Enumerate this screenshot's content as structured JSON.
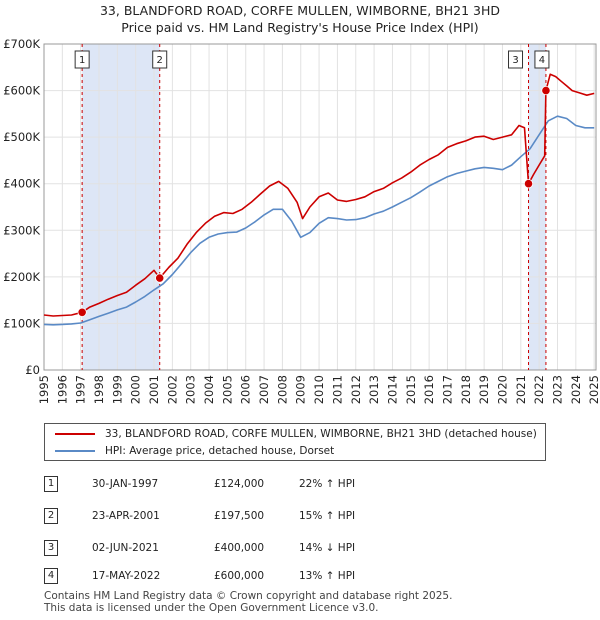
{
  "title_line1": "33, BLANDFORD ROAD, CORFE MULLEN, WIMBORNE, BH21 3HD",
  "title_line2": "Price paid vs. HM Land Registry's House Price Index (HPI)",
  "colors": {
    "property": "#cc0000",
    "hpi": "#5a8ac6",
    "shade": "#dde6f6",
    "grid": "#e2e2e2"
  },
  "chart_data": {
    "type": "line",
    "title": "33, BLANDFORD ROAD, CORFE MULLEN, WIMBORNE, BH21 3HD — Price paid vs. HM Land Registry's House Price Index (HPI)",
    "xlim": [
      1995,
      2025.1
    ],
    "ylim": [
      0,
      700000
    ],
    "y_ticks": [
      0,
      100000,
      200000,
      300000,
      400000,
      500000,
      600000,
      700000
    ],
    "y_tick_labels": [
      "£0",
      "£100K",
      "£200K",
      "£300K",
      "£400K",
      "£500K",
      "£600K",
      "£700K"
    ],
    "x_ticks": [
      "1995",
      "1996",
      "1997",
      "1998",
      "1999",
      "2000",
      "2001",
      "2002",
      "2003",
      "2004",
      "2005",
      "2006",
      "2007",
      "2008",
      "2009",
      "2010",
      "2011",
      "2012",
      "2013",
      "2014",
      "2015",
      "2016",
      "2017",
      "2018",
      "2019",
      "2020",
      "2021",
      "2022",
      "2023",
      "2024",
      "2025"
    ],
    "shaded_ranges": [
      [
        1997.08,
        2001.31
      ],
      [
        2021.42,
        2022.37
      ]
    ],
    "series": [
      {
        "name": "33, BLANDFORD ROAD, CORFE MULLEN, WIMBORNE, BH21 3HD (detached house)",
        "x": [
          1995,
          1995.5,
          1996,
          1996.5,
          1997.08,
          1997.5,
          1998,
          1998.5,
          1999,
          1999.5,
          2000,
          2000.5,
          2001,
          2001.31,
          2001.8,
          2002.3,
          2002.8,
          2003.3,
          2003.8,
          2004.3,
          2004.8,
          2005.3,
          2005.8,
          2006.3,
          2006.8,
          2007.3,
          2007.8,
          2008.3,
          2008.8,
          2009.1,
          2009.5,
          2010,
          2010.5,
          2011,
          2011.5,
          2012,
          2012.5,
          2013,
          2013.5,
          2014,
          2014.5,
          2015,
          2015.5,
          2016,
          2016.5,
          2017,
          2017.5,
          2018,
          2018.5,
          2019,
          2019.5,
          2020,
          2020.5,
          2020.9,
          2021.2,
          2021.42,
          2021.7,
          2022.0,
          2022.3,
          2022.37,
          2022.6,
          2022.9,
          2023.2,
          2023.5,
          2023.8,
          2024.2,
          2024.6,
          2025.0
        ],
        "values": [
          118000,
          116000,
          117000,
          118000,
          124000,
          135000,
          143000,
          152000,
          160000,
          167000,
          182000,
          196000,
          214000,
          197500,
          220000,
          240000,
          270000,
          295000,
          315000,
          330000,
          338000,
          336000,
          345000,
          360000,
          378000,
          395000,
          405000,
          390000,
          360000,
          325000,
          350000,
          372000,
          380000,
          365000,
          362000,
          366000,
          372000,
          383000,
          390000,
          402000,
          412000,
          425000,
          440000,
          452000,
          462000,
          478000,
          486000,
          492000,
          500000,
          502000,
          495000,
          500000,
          505000,
          525000,
          520000,
          400000,
          420000,
          440000,
          460000,
          600000,
          635000,
          630000,
          620000,
          610000,
          600000,
          595000,
          590000,
          594000
        ]
      },
      {
        "name": "HPI: Average price, detached house, Dorset",
        "x": [
          1995,
          1995.5,
          1996,
          1996.5,
          1997,
          1997.5,
          1998,
          1998.5,
          1999,
          1999.5,
          2000,
          2000.5,
          2001,
          2001.5,
          2002,
          2002.5,
          2003,
          2003.5,
          2004,
          2004.5,
          2005,
          2005.5,
          2006,
          2006.5,
          2007,
          2007.5,
          2008,
          2008.5,
          2009,
          2009.5,
          2010,
          2010.5,
          2011,
          2011.5,
          2012,
          2012.5,
          2013,
          2013.5,
          2014,
          2014.5,
          2015,
          2015.5,
          2016,
          2016.5,
          2017,
          2017.5,
          2018,
          2018.5,
          2019,
          2019.5,
          2020,
          2020.5,
          2021,
          2021.5,
          2022,
          2022.5,
          2023,
          2023.5,
          2024,
          2024.5,
          2025.0
        ],
        "values": [
          98000,
          97000,
          98000,
          99000,
          101000,
          108000,
          115000,
          122000,
          129000,
          135000,
          146000,
          158000,
          172000,
          185000,
          205000,
          228000,
          252000,
          272000,
          285000,
          292000,
          295000,
          296000,
          305000,
          318000,
          333000,
          345000,
          345000,
          320000,
          285000,
          295000,
          315000,
          327000,
          325000,
          322000,
          323000,
          327000,
          335000,
          341000,
          350000,
          360000,
          370000,
          382000,
          395000,
          405000,
          415000,
          422000,
          427000,
          432000,
          435000,
          433000,
          430000,
          440000,
          458000,
          475000,
          505000,
          535000,
          545000,
          540000,
          525000,
          520000,
          520000
        ]
      }
    ],
    "transactions": [
      {
        "n": "1",
        "x": 1997.08,
        "value": 124000
      },
      {
        "n": "2",
        "x": 2001.31,
        "value": 197500
      },
      {
        "n": "3",
        "x": 2021.42,
        "value": 400000
      },
      {
        "n": "4",
        "x": 2022.37,
        "value": 600000
      }
    ]
  },
  "legend": {
    "property": "33, BLANDFORD ROAD, CORFE MULLEN, WIMBORNE, BH21 3HD (detached house)",
    "hpi": "HPI: Average price, detached house, Dorset"
  },
  "table": [
    {
      "n": "1",
      "date": "30-JAN-1997",
      "price": "£124,000",
      "hpi": "22% ↑ HPI"
    },
    {
      "n": "2",
      "date": "23-APR-2001",
      "price": "£197,500",
      "hpi": "15% ↑ HPI"
    },
    {
      "n": "3",
      "date": "02-JUN-2021",
      "price": "£400,000",
      "hpi": "14% ↓ HPI"
    },
    {
      "n": "4",
      "date": "17-MAY-2022",
      "price": "£600,000",
      "hpi": "13% ↑ HPI"
    }
  ],
  "footer": {
    "line1": "Contains HM Land Registry data © Crown copyright and database right 2025.",
    "line2": "This data is licensed under the Open Government Licence v3.0."
  }
}
